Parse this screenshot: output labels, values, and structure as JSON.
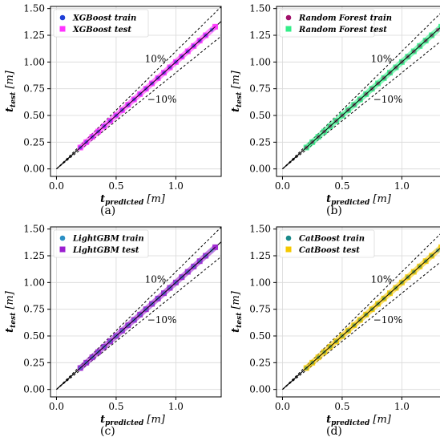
{
  "figure": {
    "captions": [
      "(a)",
      "(b)",
      "(c)",
      "(d)"
    ]
  },
  "chart_data": [
    {
      "type": "scatter",
      "title": "",
      "xlabel": "t_predicted [m]",
      "ylabel": "t_test [m]",
      "xlim": [
        -0.05,
        1.38
      ],
      "ylim": [
        -0.07,
        1.52
      ],
      "xticks": [
        0.0,
        0.5,
        1.0
      ],
      "yticks": [
        0.0,
        0.25,
        0.5,
        0.75,
        1.0,
        1.25,
        1.5
      ],
      "grid": true,
      "legend_position": "top-left",
      "annotations": [
        "10%",
        "−10%"
      ],
      "series": [
        {
          "name": "XGBoost train",
          "marker": "circle",
          "color": "#1f3fd6",
          "x": [
            0.2,
            0.25,
            0.3,
            0.35,
            0.4,
            0.45,
            0.5,
            0.55,
            0.6,
            0.65,
            0.7,
            0.75,
            0.8,
            0.85,
            0.9,
            0.95,
            1.0,
            1.05,
            1.1,
            1.15,
            1.2,
            1.25,
            1.3
          ],
          "y": [
            0.2,
            0.25,
            0.3,
            0.35,
            0.4,
            0.45,
            0.5,
            0.55,
            0.6,
            0.65,
            0.7,
            0.75,
            0.8,
            0.85,
            0.9,
            0.95,
            1.0,
            1.05,
            1.1,
            1.15,
            1.2,
            1.25,
            1.3
          ]
        },
        {
          "name": "XGBoost test",
          "marker": "square",
          "color": "#ff33ff",
          "x": [
            0.2,
            0.25,
            0.3,
            0.35,
            0.4,
            0.45,
            0.5,
            0.55,
            0.6,
            0.65,
            0.7,
            0.75,
            0.8,
            0.85,
            0.9,
            0.95,
            1.0,
            1.05,
            1.1,
            1.15,
            1.2,
            1.25,
            1.33
          ],
          "y": [
            0.2,
            0.25,
            0.3,
            0.35,
            0.4,
            0.45,
            0.5,
            0.55,
            0.6,
            0.65,
            0.7,
            0.75,
            0.8,
            0.85,
            0.9,
            0.95,
            1.0,
            1.05,
            1.1,
            1.15,
            1.2,
            1.25,
            1.33
          ]
        }
      ],
      "reference_lines": [
        "y = x",
        "y = 1.1x",
        "y = 0.9x"
      ]
    },
    {
      "type": "scatter",
      "title": "",
      "xlabel": "t_predicted [m]",
      "ylabel": "t_test [m]",
      "xlim": [
        -0.05,
        1.38
      ],
      "ylim": [
        -0.07,
        1.52
      ],
      "xticks": [
        0.0,
        0.5,
        1.0
      ],
      "yticks": [
        0.0,
        0.25,
        0.5,
        0.75,
        1.0,
        1.25,
        1.5
      ],
      "grid": true,
      "legend_position": "top-left",
      "annotations": [
        "10%",
        "−10%"
      ],
      "series": [
        {
          "name": "Random Forest train",
          "marker": "circle",
          "color": "#a0106a",
          "x": [
            0.2,
            0.25,
            0.3,
            0.35,
            0.4,
            0.45,
            0.5,
            0.55,
            0.6,
            0.65,
            0.7,
            0.75,
            0.8,
            0.85,
            0.9,
            0.95,
            1.0,
            1.05,
            1.1,
            1.15,
            1.2,
            1.25,
            1.3
          ],
          "y": [
            0.2,
            0.25,
            0.3,
            0.35,
            0.4,
            0.45,
            0.5,
            0.55,
            0.6,
            0.65,
            0.7,
            0.75,
            0.8,
            0.85,
            0.9,
            0.95,
            1.0,
            1.05,
            1.1,
            1.15,
            1.2,
            1.25,
            1.3
          ]
        },
        {
          "name": "Random Forest test",
          "marker": "square",
          "color": "#33ee88",
          "x": [
            0.2,
            0.25,
            0.3,
            0.35,
            0.4,
            0.45,
            0.5,
            0.55,
            0.6,
            0.65,
            0.7,
            0.75,
            0.8,
            0.85,
            0.9,
            0.95,
            1.0,
            1.05,
            1.1,
            1.15,
            1.2,
            1.25,
            1.33
          ],
          "y": [
            0.2,
            0.25,
            0.3,
            0.35,
            0.4,
            0.45,
            0.5,
            0.55,
            0.6,
            0.65,
            0.7,
            0.75,
            0.8,
            0.85,
            0.9,
            0.95,
            1.0,
            1.05,
            1.1,
            1.15,
            1.2,
            1.25,
            1.33
          ]
        }
      ],
      "reference_lines": [
        "y = x",
        "y = 1.1x",
        "y = 0.9x"
      ]
    },
    {
      "type": "scatter",
      "title": "",
      "xlabel": "t_predicted [m]",
      "ylabel": "t_test [m]",
      "xlim": [
        -0.05,
        1.38
      ],
      "ylim": [
        -0.07,
        1.52
      ],
      "xticks": [
        0.0,
        0.5,
        1.0
      ],
      "yticks": [
        0.0,
        0.25,
        0.5,
        0.75,
        1.0,
        1.25,
        1.5
      ],
      "grid": true,
      "legend_position": "top-left",
      "annotations": [
        "10%",
        "−10%"
      ],
      "series": [
        {
          "name": "LightGBM train",
          "marker": "circle",
          "color": "#2b8fc4",
          "x": [
            0.2,
            0.25,
            0.3,
            0.35,
            0.4,
            0.45,
            0.5,
            0.55,
            0.6,
            0.65,
            0.7,
            0.75,
            0.8,
            0.85,
            0.9,
            0.95,
            1.0,
            1.05,
            1.1,
            1.15,
            1.2,
            1.25,
            1.3
          ],
          "y": [
            0.2,
            0.25,
            0.3,
            0.35,
            0.4,
            0.45,
            0.5,
            0.55,
            0.6,
            0.65,
            0.7,
            0.75,
            0.8,
            0.85,
            0.9,
            0.95,
            1.0,
            1.05,
            1.1,
            1.15,
            1.2,
            1.25,
            1.3
          ]
        },
        {
          "name": "LightGBM test",
          "marker": "square",
          "color": "#9b1fd0",
          "x": [
            0.2,
            0.25,
            0.3,
            0.35,
            0.4,
            0.45,
            0.5,
            0.55,
            0.6,
            0.65,
            0.7,
            0.75,
            0.8,
            0.85,
            0.9,
            0.95,
            1.0,
            1.05,
            1.1,
            1.15,
            1.2,
            1.25,
            1.33
          ],
          "y": [
            0.2,
            0.25,
            0.3,
            0.35,
            0.4,
            0.45,
            0.5,
            0.55,
            0.6,
            0.65,
            0.7,
            0.75,
            0.8,
            0.85,
            0.9,
            0.95,
            1.0,
            1.05,
            1.1,
            1.15,
            1.2,
            1.25,
            1.33
          ]
        }
      ],
      "reference_lines": [
        "y = x",
        "y = 1.1x",
        "y = 0.9x"
      ]
    },
    {
      "type": "scatter",
      "title": "",
      "xlabel": "t_predicted [m]",
      "ylabel": "t_test [m]",
      "xlim": [
        -0.05,
        1.38
      ],
      "ylim": [
        -0.07,
        1.52
      ],
      "xticks": [
        0.0,
        0.5,
        1.0
      ],
      "yticks": [
        0.0,
        0.25,
        0.5,
        0.75,
        1.0,
        1.25,
        1.5
      ],
      "grid": true,
      "legend_position": "top-left",
      "annotations": [
        "10%",
        "−10%"
      ],
      "series": [
        {
          "name": "CatBoost train",
          "marker": "circle",
          "color": "#1a8a8a",
          "x": [
            0.2,
            0.25,
            0.3,
            0.35,
            0.4,
            0.45,
            0.5,
            0.55,
            0.6,
            0.65,
            0.7,
            0.75,
            0.8,
            0.85,
            0.9,
            0.95,
            1.0,
            1.05,
            1.1,
            1.15,
            1.2,
            1.25,
            1.3
          ],
          "y": [
            0.2,
            0.25,
            0.3,
            0.35,
            0.4,
            0.45,
            0.5,
            0.55,
            0.6,
            0.65,
            0.7,
            0.75,
            0.8,
            0.85,
            0.9,
            0.95,
            1.0,
            1.05,
            1.1,
            1.15,
            1.2,
            1.25,
            1.3
          ]
        },
        {
          "name": "CatBoost test",
          "marker": "square",
          "color": "#f5c800",
          "x": [
            0.2,
            0.25,
            0.3,
            0.35,
            0.4,
            0.45,
            0.5,
            0.55,
            0.6,
            0.65,
            0.7,
            0.75,
            0.8,
            0.85,
            0.9,
            0.95,
            1.0,
            1.05,
            1.1,
            1.15,
            1.2,
            1.25,
            1.33
          ],
          "y": [
            0.2,
            0.25,
            0.3,
            0.35,
            0.4,
            0.45,
            0.5,
            0.55,
            0.6,
            0.65,
            0.7,
            0.75,
            0.8,
            0.85,
            0.9,
            0.95,
            1.0,
            1.05,
            1.1,
            1.15,
            1.2,
            1.25,
            1.33
          ]
        }
      ],
      "reference_lines": [
        "y = x",
        "y = 1.1x",
        "y = 0.9x"
      ]
    }
  ]
}
